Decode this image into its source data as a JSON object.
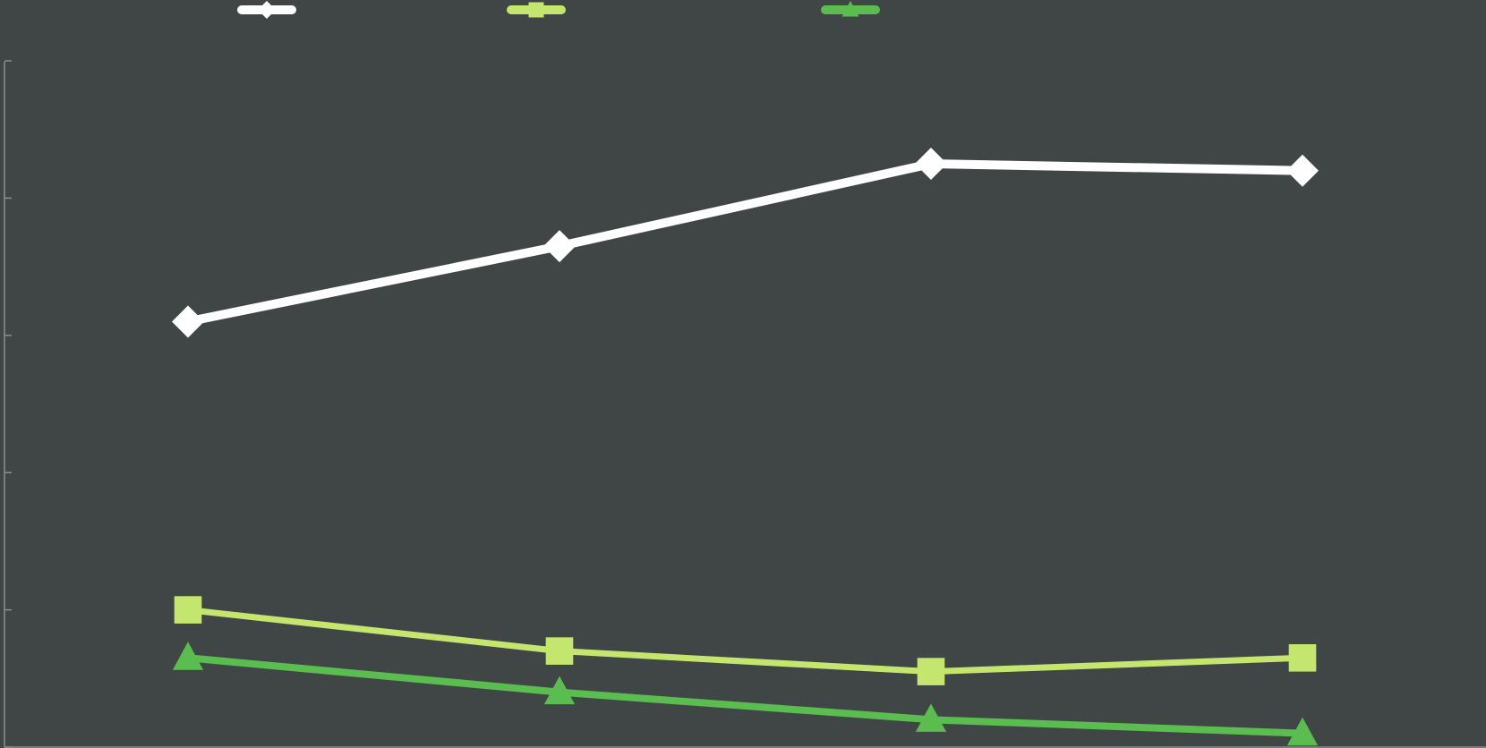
{
  "colors": {
    "background": "#404646",
    "axis": "#8a8f8f"
  },
  "legend": {
    "position": "top",
    "entries": [
      {
        "series_index": 0,
        "marker": "diamond"
      },
      {
        "series_index": 1,
        "marker": "square"
      },
      {
        "series_index": 2,
        "marker": "triangle"
      }
    ]
  },
  "chart_data": {
    "type": "line",
    "title": "",
    "xlabel": "",
    "ylabel": "",
    "x": [
      1,
      2,
      3,
      4
    ],
    "ylim": [
      0,
      5
    ],
    "yticks": [
      0,
      1,
      2,
      3,
      4,
      5
    ],
    "tick_labels_visible": false,
    "grid": false,
    "series": [
      {
        "color": "#ffffff",
        "marker": "diamond",
        "values": [
          3.1,
          3.65,
          4.25,
          4.2
        ]
      },
      {
        "color": "#c5e66e",
        "marker": "square",
        "values": [
          1.0,
          0.7,
          0.55,
          0.65
        ]
      },
      {
        "color": "#5bbd4f",
        "marker": "triangle",
        "values": [
          0.65,
          0.4,
          0.2,
          0.1
        ]
      }
    ]
  }
}
